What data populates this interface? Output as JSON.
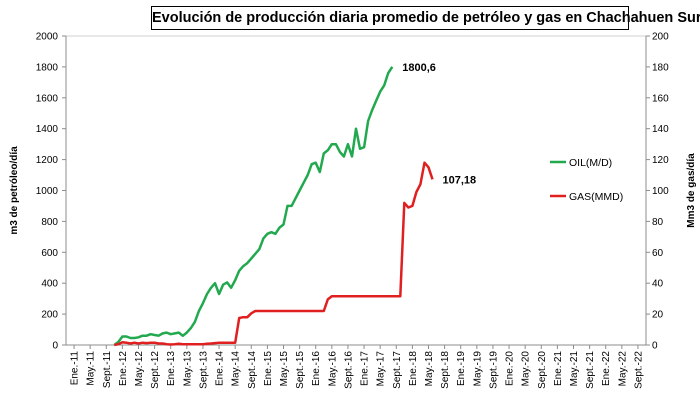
{
  "chart_data": {
    "type": "line",
    "title": "Evolución de producción diaria promedio de petróleo y gas en Chachahuen Sur",
    "ylabel": "m3 de petróleo/día",
    "y2label": "Mm3 de gas/día",
    "ylim": [
      0,
      2000
    ],
    "y2lim": [
      0,
      200
    ],
    "yticks": [
      0,
      200,
      400,
      600,
      800,
      1000,
      1200,
      1400,
      1600,
      1800,
      2000
    ],
    "y2ticks": [
      0,
      20,
      40,
      60,
      80,
      100,
      120,
      140,
      160,
      180,
      200
    ],
    "x_tick_labels": [
      "Ene.-11",
      "May.-11",
      "Sept.-11",
      "Ene.-12",
      "May.-12",
      "Sept.-12",
      "Ene.-13",
      "May.-13",
      "Sept.-13",
      "Ene.-14",
      "May.-14",
      "Sept.-14",
      "Ene.-15",
      "May.-15",
      "Sept.-15",
      "Ene.-16",
      "May.-16",
      "Sept.-16",
      "Ene.-17",
      "May.-17",
      "Sept.-17",
      "Ene.-18",
      "May.-18",
      "Sept.-18",
      "Ene.-19",
      "May.-19",
      "Sept.-19",
      "Ene.-20",
      "May.-20",
      "Sept.-20",
      "Ene.-21",
      "May.-21",
      "Sept.-21",
      "Ene.-22",
      "May.-22",
      "Sept.-22"
    ],
    "grid": false,
    "legend_position": "right",
    "series": [
      {
        "name": "OIL(M/D)",
        "axis": "left",
        "color": "#22a94f",
        "end_label": "1800,6",
        "points": [
          [
            "Nov.-11",
            0
          ],
          [
            "Dic.-11",
            20
          ],
          [
            "Ene.-12",
            55
          ],
          [
            "Feb.-12",
            55
          ],
          [
            "Mar.-12",
            45
          ],
          [
            "Abr.-12",
            45
          ],
          [
            "May.-12",
            50
          ],
          [
            "Jun.-12",
            60
          ],
          [
            "Jul.-12",
            60
          ],
          [
            "Ago.-12",
            70
          ],
          [
            "Sept.-12",
            65
          ],
          [
            "Oct.-12",
            60
          ],
          [
            "Nov.-12",
            75
          ],
          [
            "Dic.-12",
            80
          ],
          [
            "Ene.-13",
            70
          ],
          [
            "Feb.-13",
            75
          ],
          [
            "Mar.-13",
            80
          ],
          [
            "Abr.-13",
            60
          ],
          [
            "May.-13",
            80
          ],
          [
            "Jun.-13",
            110
          ],
          [
            "Jul.-13",
            150
          ],
          [
            "Ago.-13",
            220
          ],
          [
            "Sept.-13",
            270
          ],
          [
            "Oct.-13",
            330
          ],
          [
            "Nov.-13",
            370
          ],
          [
            "Dic.-13",
            400
          ],
          [
            "Ene.-14",
            330
          ],
          [
            "Feb.-14",
            390
          ],
          [
            "Mar.-14",
            405
          ],
          [
            "Abr.-14",
            370
          ],
          [
            "May.-14",
            420
          ],
          [
            "Jun.-14",
            480
          ],
          [
            "Jul.-14",
            510
          ],
          [
            "Ago.-14",
            530
          ],
          [
            "Sept.-14",
            560
          ],
          [
            "Oct.-14",
            590
          ],
          [
            "Nov.-14",
            620
          ],
          [
            "Dic.-14",
            690
          ],
          [
            "Ene.-15",
            720
          ],
          [
            "Feb.-15",
            730
          ],
          [
            "Mar.-15",
            720
          ],
          [
            "Abr.-15",
            760
          ],
          [
            "May.-15",
            780
          ],
          [
            "Jun.-15",
            900
          ],
          [
            "Jul.-15",
            900
          ],
          [
            "Ago.-15",
            950
          ],
          [
            "Sept.-15",
            1000
          ],
          [
            "Oct.-15",
            1050
          ],
          [
            "Nov.-15",
            1100
          ],
          [
            "Dic.-15",
            1170
          ],
          [
            "Ene.-16",
            1180
          ],
          [
            "Feb.-16",
            1120
          ],
          [
            "Mar.-16",
            1240
          ],
          [
            "Abr.-16",
            1260
          ],
          [
            "May.-16",
            1300
          ],
          [
            "Jun.-16",
            1300
          ],
          [
            "Jul.-16",
            1250
          ],
          [
            "Ago.-16",
            1220
          ],
          [
            "Sept.-16",
            1300
          ],
          [
            "Oct.-16",
            1220
          ],
          [
            "Nov.-16",
            1400
          ],
          [
            "Dic.-16",
            1270
          ],
          [
            "Ene.-17",
            1280
          ],
          [
            "Feb.-17",
            1450
          ],
          [
            "Mar.-17",
            1520
          ],
          [
            "Abr.-17",
            1580
          ],
          [
            "May.-17",
            1640
          ],
          [
            "Jun.-17",
            1680
          ],
          [
            "Jul.-17",
            1760
          ],
          [
            "Ago.-17",
            1800.6
          ]
        ]
      },
      {
        "name": "GAS(MMD)",
        "axis": "right",
        "color": "#e02020",
        "end_label": "107,18",
        "points": [
          [
            "Nov.-11",
            0
          ],
          [
            "Dic.-11",
            0.5
          ],
          [
            "Ene.-12",
            1.8
          ],
          [
            "Feb.-12",
            1.5
          ],
          [
            "Mar.-12",
            1
          ],
          [
            "Abr.-12",
            1.5
          ],
          [
            "May.-12",
            1
          ],
          [
            "Jun.-12",
            1.5
          ],
          [
            "Jul.-12",
            1.2
          ],
          [
            "Ago.-12",
            1.5
          ],
          [
            "Sept.-12",
            1.5
          ],
          [
            "Oct.-12",
            1
          ],
          [
            "Nov.-12",
            1
          ],
          [
            "Dic.-12",
            0.5
          ],
          [
            "Ene.-13",
            0.3
          ],
          [
            "Feb.-13",
            0.5
          ],
          [
            "Mar.-13",
            0.8
          ],
          [
            "Abr.-13",
            0.5
          ],
          [
            "May.-13",
            0.5
          ],
          [
            "Jun.-13",
            0.5
          ],
          [
            "Jul.-13",
            0.5
          ],
          [
            "Ago.-13",
            0.5
          ],
          [
            "Sept.-13",
            0.5
          ],
          [
            "Oct.-13",
            0.8
          ],
          [
            "Nov.-13",
            1
          ],
          [
            "Dic.-13",
            1.2
          ],
          [
            "Ene.-14",
            1.5
          ],
          [
            "Feb.-14",
            1.5
          ],
          [
            "Mar.-14",
            1.5
          ],
          [
            "Abr.-14",
            1.5
          ],
          [
            "May.-14",
            1.5
          ],
          [
            "Jun.-14",
            17.5
          ],
          [
            "Jul.-14",
            18
          ],
          [
            "Ago.-14",
            18
          ],
          [
            "Sept.-14",
            20.5
          ],
          [
            "Oct.-14",
            22
          ],
          [
            "Nov.-14",
            22
          ],
          [
            "Dic.-14",
            22
          ],
          [
            "Ene.-15",
            22
          ],
          [
            "Feb.-15",
            22
          ],
          [
            "Mar.-15",
            22
          ],
          [
            "Abr.-15",
            22
          ],
          [
            "May.-15",
            22
          ],
          [
            "Jun.-15",
            22
          ],
          [
            "Jul.-15",
            22
          ],
          [
            "Ago.-15",
            22
          ],
          [
            "Sept.-15",
            22
          ],
          [
            "Oct.-15",
            22
          ],
          [
            "Nov.-15",
            22
          ],
          [
            "Dic.-15",
            22
          ],
          [
            "Ene.-16",
            22
          ],
          [
            "Feb.-16",
            22
          ],
          [
            "Mar.-16",
            22
          ],
          [
            "Abr.-16",
            29.5
          ],
          [
            "May.-16",
            31.5
          ],
          [
            "Jun.-16",
            31.5
          ],
          [
            "Jul.-16",
            31.5
          ],
          [
            "Ago.-16",
            31.5
          ],
          [
            "Sept.-16",
            31.5
          ],
          [
            "Oct.-16",
            31.5
          ],
          [
            "Nov.-16",
            31.5
          ],
          [
            "Dic.-16",
            31.5
          ],
          [
            "Ene.-17",
            31.5
          ],
          [
            "Feb.-17",
            31.5
          ],
          [
            "Mar.-17",
            31.5
          ],
          [
            "Abr.-17",
            31.5
          ],
          [
            "May.-17",
            31.5
          ],
          [
            "Jun.-17",
            31.5
          ],
          [
            "Jul.-17",
            31.5
          ],
          [
            "Ago.-17",
            31.5
          ],
          [
            "Sept.-17",
            31.5
          ],
          [
            "Oct.-17",
            31.5
          ],
          [
            "Nov.-17",
            92
          ],
          [
            "Dic.-17",
            89
          ],
          [
            "Ene.-18",
            90
          ],
          [
            "Feb.-18",
            99
          ],
          [
            "Mar.-18",
            104
          ],
          [
            "Abr.-18",
            118
          ],
          [
            "May.-18",
            115
          ],
          [
            "Jun.-18",
            107.18
          ]
        ]
      }
    ]
  }
}
